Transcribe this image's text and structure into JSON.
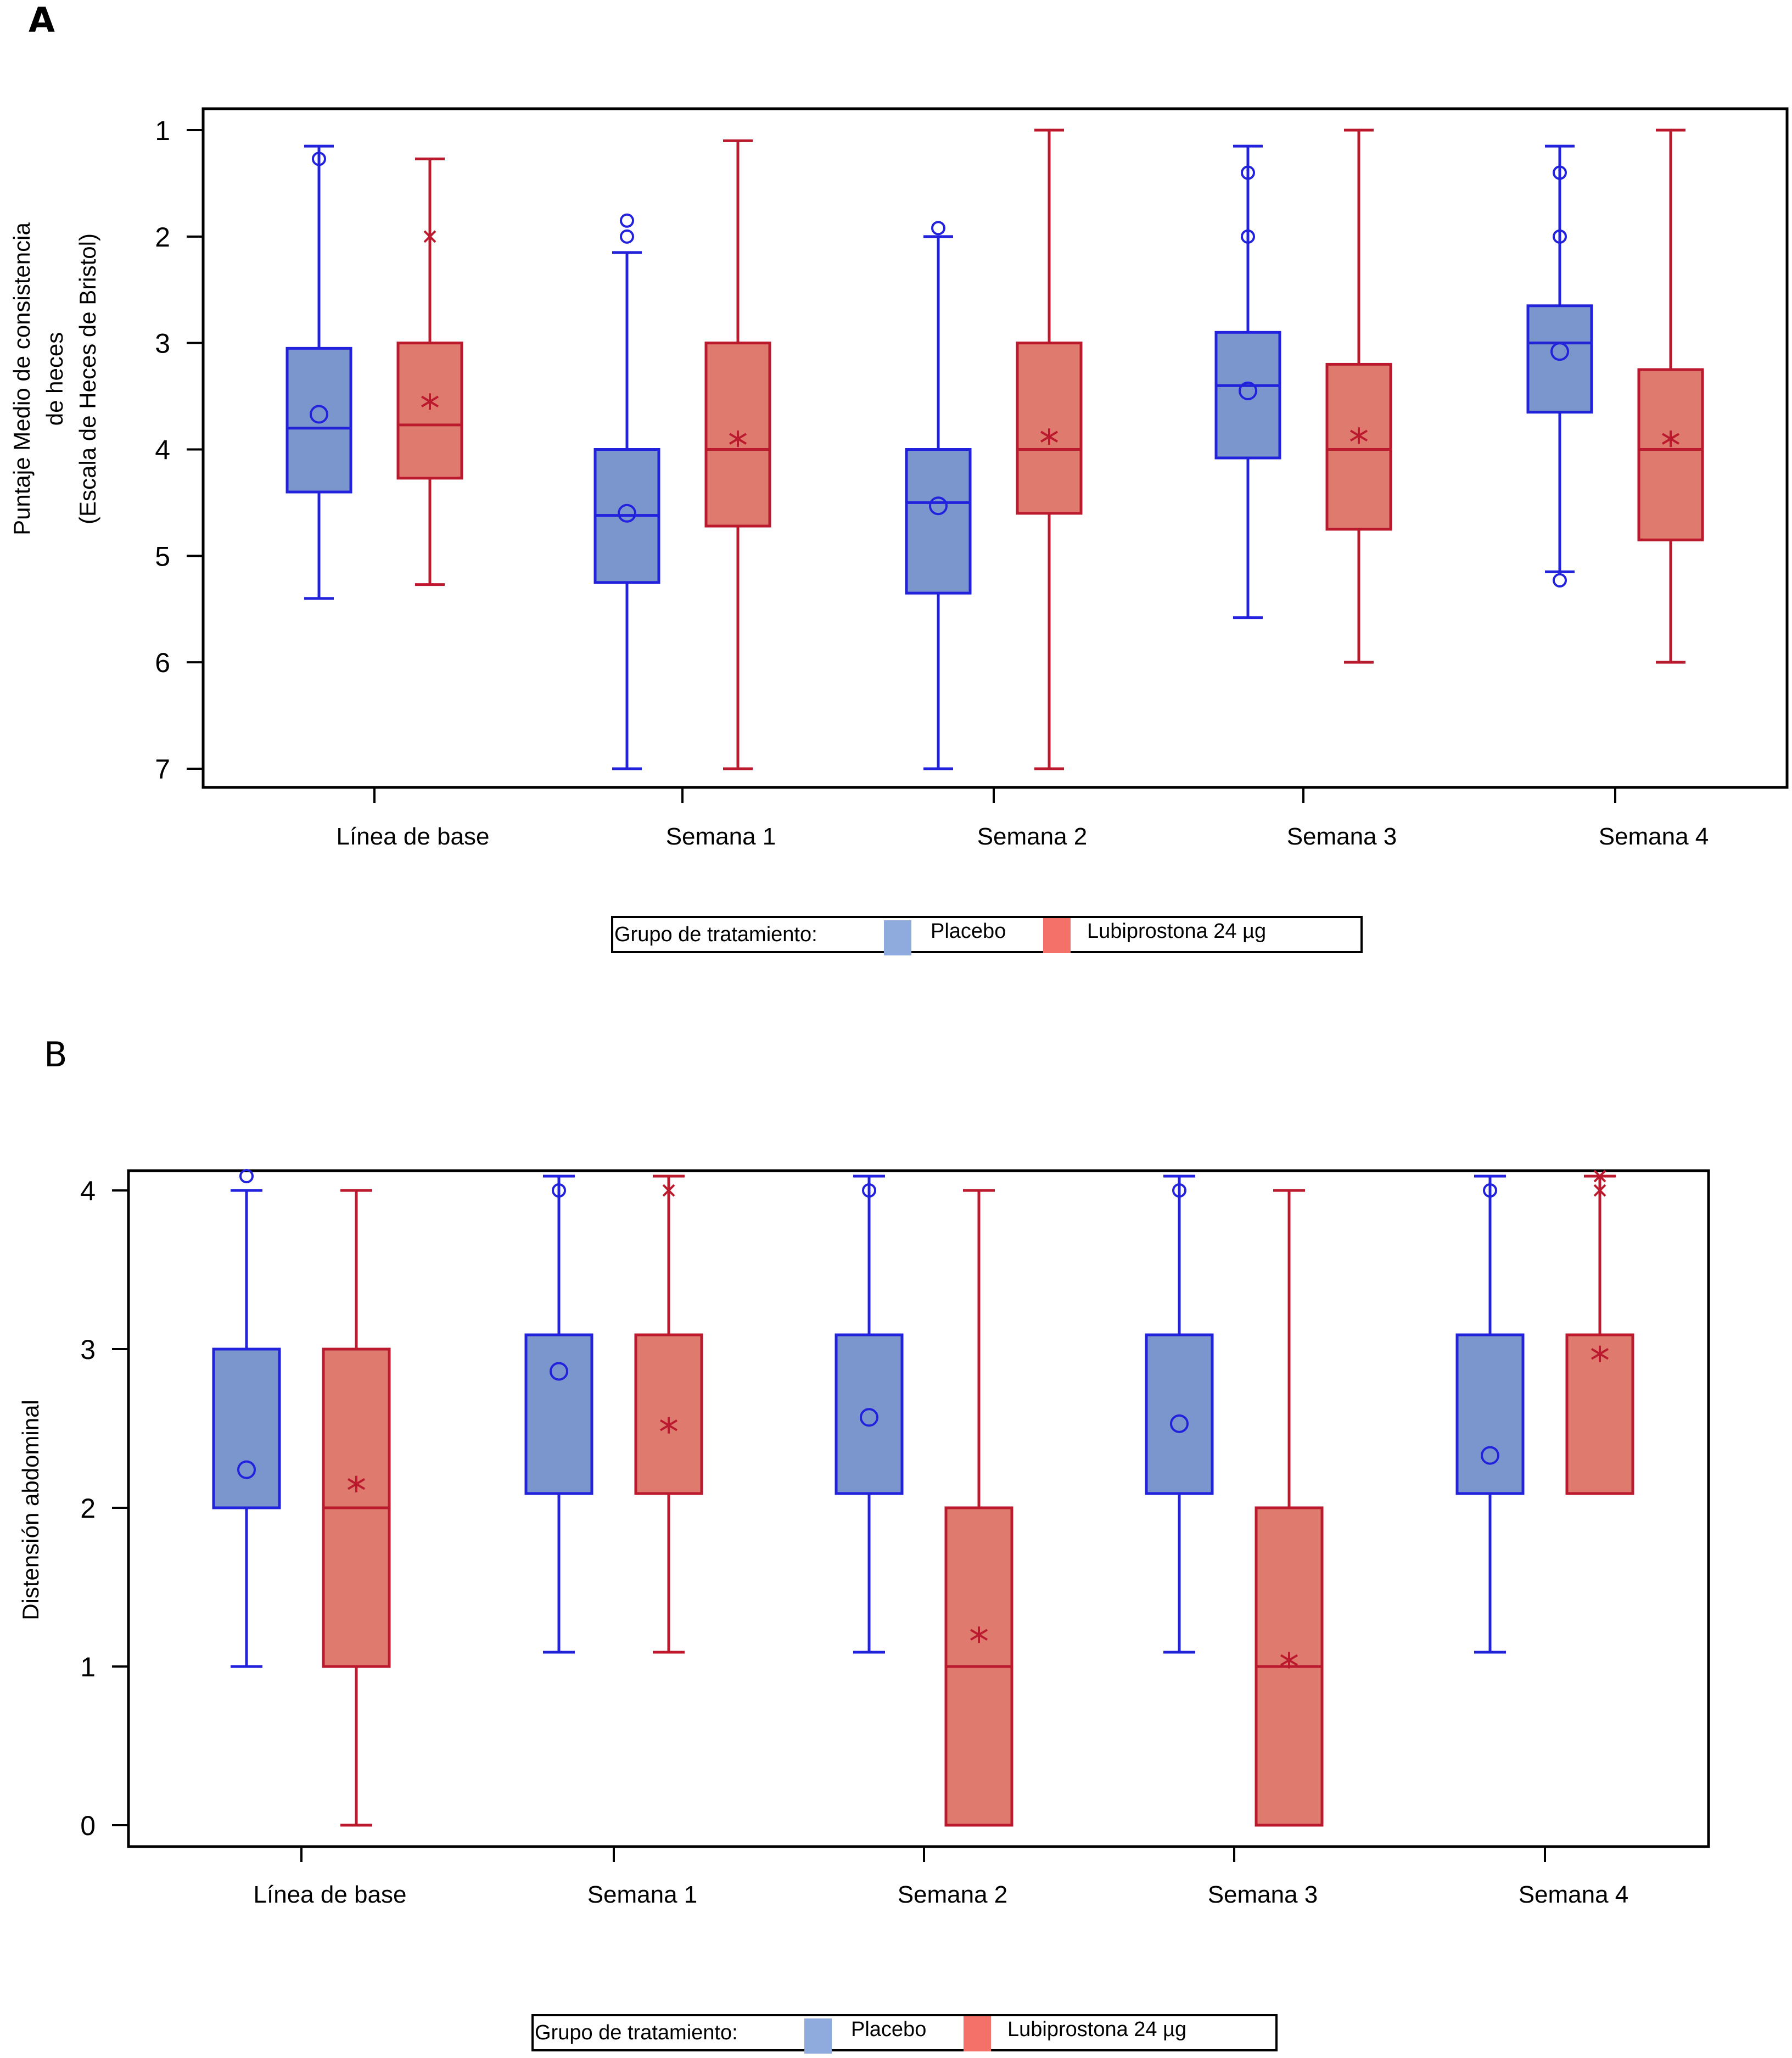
{
  "chart_data": [
    {
      "panel": "A",
      "type": "box",
      "title": "",
      "ylabel": [
        "Puntaje  Medio de consistencia",
        "de heces",
        "(Escala de Heces de Bristol)"
      ],
      "xlabel": "",
      "y_inverted": true,
      "ylim": [
        1,
        7
      ],
      "yticks": [
        "1",
        "2",
        "3",
        "4",
        "5",
        "6",
        "7"
      ],
      "categories": [
        "Línea de base",
        "Semana 1",
        "Semana 2",
        "Semana 3",
        "Semana 4"
      ],
      "series": [
        {
          "name": "Placebo",
          "color_fill": "#7b96cc",
          "color_line": "#2222dd",
          "mean_marker": "circle",
          "boxes": [
            {
              "whisker_low": 1.15,
              "q1": 3.05,
              "median": 3.8,
              "q3": 4.4,
              "whisker_high": 5.4,
              "mean": 3.67,
              "outliers": [
                1.27
              ]
            },
            {
              "whisker_low": 2.15,
              "q1": 4.0,
              "median": 4.62,
              "q3": 5.25,
              "whisker_high": 7.0,
              "mean": 4.6,
              "outliers": [
                1.85,
                2.0
              ]
            },
            {
              "whisker_low": 2.0,
              "q1": 4.0,
              "median": 4.5,
              "q3": 5.35,
              "whisker_high": 7.0,
              "mean": 4.53,
              "outliers": [
                1.92
              ]
            },
            {
              "whisker_low": 1.15,
              "q1": 2.9,
              "median": 3.4,
              "q3": 4.08,
              "whisker_high": 5.58,
              "mean": 3.45,
              "outliers": [
                1.4,
                2.0
              ]
            },
            {
              "whisker_low": 1.15,
              "q1": 2.65,
              "median": 3.0,
              "q3": 3.65,
              "whisker_high": 5.15,
              "mean": 3.08,
              "outliers": [
                1.4,
                2.0,
                5.23
              ]
            }
          ]
        },
        {
          "name": "Lubiprostona 24 µg",
          "color_fill": "#df7b6e",
          "color_line": "#bb1a2e",
          "mean_marker": "asterisk",
          "boxes": [
            {
              "whisker_low": 1.27,
              "q1": 3.0,
              "median": 3.77,
              "q3": 4.27,
              "whisker_high": 5.27,
              "mean": 3.55,
              "outliers": [
                2.0
              ]
            },
            {
              "whisker_low": 1.1,
              "q1": 3.0,
              "median": 4.0,
              "q3": 4.72,
              "whisker_high": 7.0,
              "mean": 3.9,
              "outliers": []
            },
            {
              "whisker_low": 1.0,
              "q1": 3.0,
              "median": 4.0,
              "q3": 4.6,
              "whisker_high": 7.0,
              "mean": 3.88,
              "outliers": []
            },
            {
              "whisker_low": 1.0,
              "q1": 3.2,
              "median": 4.0,
              "q3": 4.75,
              "whisker_high": 6.0,
              "mean": 3.87,
              "outliers": []
            },
            {
              "whisker_low": 1.0,
              "q1": 3.25,
              "median": 4.0,
              "q3": 4.85,
              "whisker_high": 6.0,
              "mean": 3.9,
              "outliers": []
            }
          ]
        }
      ],
      "legend": {
        "title": "Grupo de tratamiento:",
        "entries": [
          "Placebo",
          "Lubiprostona 24 µg"
        ],
        "placement": "bottom-center"
      },
      "grid": false
    },
    {
      "panel": "B",
      "type": "box",
      "title": "",
      "ylabel": [
        "Distensión abdominal"
      ],
      "xlabel": "",
      "y_inverted": false,
      "ylim": [
        0,
        4.1
      ],
      "yticks": [
        "0",
        "1",
        "2",
        "3",
        "4"
      ],
      "categories": [
        "Línea de base",
        "Semana 1",
        "Semana 2",
        "Semana 3",
        "Semana 4"
      ],
      "series": [
        {
          "name": "Placebo",
          "color_fill": "#7b96cc",
          "color_line": "#2222dd",
          "mean_marker": "circle",
          "boxes": [
            {
              "whisker_low": 1.0,
              "q1": 2.0,
              "median": 2.0,
              "q3": 3.0,
              "whisker_high": 4.0,
              "mean": 2.24,
              "outliers": [
                4.09
              ]
            },
            {
              "whisker_low": 1.09,
              "q1": 2.09,
              "median": 2.09,
              "q3": 3.09,
              "whisker_high": 4.09,
              "mean": 2.86,
              "outliers": [
                4.0
              ]
            },
            {
              "whisker_low": 1.09,
              "q1": 2.09,
              "median": 2.09,
              "q3": 3.09,
              "whisker_high": 4.09,
              "mean": 2.57,
              "outliers": [
                4.0
              ]
            },
            {
              "whisker_low": 1.09,
              "q1": 2.09,
              "median": 2.09,
              "q3": 3.09,
              "whisker_high": 4.09,
              "mean": 2.53,
              "outliers": [
                4.0
              ]
            },
            {
              "whisker_low": 1.09,
              "q1": 2.09,
              "median": 2.09,
              "q3": 3.09,
              "whisker_high": 4.09,
              "mean": 2.33,
              "outliers": [
                4.0
              ]
            }
          ]
        },
        {
          "name": "Lubiprostona 24 µg",
          "color_fill": "#df7b6e",
          "color_line": "#bb1a2e",
          "mean_marker": "asterisk",
          "boxes": [
            {
              "whisker_low": 0.0,
              "q1": 1.0,
              "median": 2.0,
              "q3": 3.0,
              "whisker_high": 4.0,
              "mean": 2.15,
              "outliers": []
            },
            {
              "whisker_low": 1.09,
              "q1": 2.09,
              "median": 2.09,
              "q3": 3.09,
              "whisker_high": 4.09,
              "mean": 2.52,
              "outliers": [
                4.0
              ]
            },
            {
              "whisker_low": 0.0,
              "q1": 0.0,
              "median": 1.0,
              "q3": 2.0,
              "whisker_high": 4.0,
              "mean": 1.2,
              "outliers": []
            },
            {
              "whisker_low": 0.0,
              "q1": 0.0,
              "median": 1.0,
              "q3": 2.0,
              "whisker_high": 4.0,
              "mean": 1.04,
              "outliers": []
            },
            {
              "whisker_low": 2.09,
              "q1": 2.09,
              "median": 2.09,
              "q3": 3.09,
              "whisker_high": 4.09,
              "mean": 2.97,
              "outliers": [
                4.0,
                4.09
              ]
            }
          ]
        }
      ],
      "legend": {
        "title": "Grupo de tratamiento:",
        "entries": [
          "Placebo",
          "Lubiprostona 24 µg"
        ],
        "placement": "bottom-center"
      },
      "grid": false
    }
  ],
  "panels": {
    "a_letter": "A",
    "b_letter": "B"
  },
  "legend_colors": {
    "placebo": "#8faadc",
    "lubiprostone": "#f4716a"
  }
}
